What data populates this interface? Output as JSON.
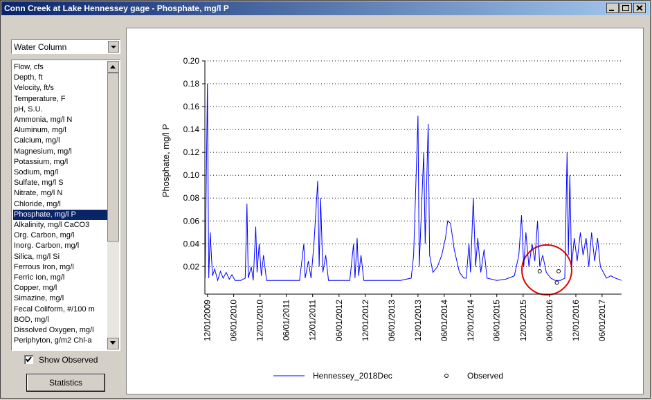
{
  "window": {
    "title": "Conn Creek at Lake Hennessey gage - Phosphate, mg/l P"
  },
  "sidebar": {
    "dropdown": "Water Column",
    "list_items": [
      "Flow, cfs",
      "Depth, ft",
      "Velocity, ft/s",
      "Temperature, F",
      "pH, S.U.",
      "Ammonia, mg/l N",
      "Aluminum, mg/l",
      "Calcium, mg/l",
      "Magnesium, mg/l",
      "Potassium, mg/l",
      "Sodium, mg/l",
      "Sulfate, mg/l S",
      "Nitrate, mg/l N",
      "Chloride, mg/l",
      "Phosphate, mg/l P",
      "Alkalinity, mg/l CaCO3",
      "Org. Carbon, mg/l",
      "Inorg. Carbon, mg/l",
      "Silica, mg/l Si",
      "Ferrous Iron, mg/l",
      "Ferric Ion, mg/l",
      "Copper, mg/l",
      "Simazine, mg/l",
      "Fecal Coliform, #/100 m",
      "BOD, mg/l",
      "Dissolved Oxygen, mg/l",
      "Periphyton, g/m2 Chl-a"
    ],
    "selected_index": 14,
    "checkbox": {
      "label": "Show Observed",
      "checked": true
    },
    "button": "Statistics"
  },
  "chart_data": {
    "type": "line",
    "ylabel": "Phosphate, mg/l P",
    "ylim": [
      -0.004,
      0.2
    ],
    "yticks": [
      0.02,
      0.04,
      0.06,
      0.08,
      {
        "value": 0.1,
        "label": "0.10"
      },
      0.12,
      0.14,
      0.16,
      0.18,
      {
        "value": 0.2,
        "label": "0.20"
      }
    ],
    "xlim": [
      "11/13/2009",
      "10/14/2017"
    ],
    "xticks": [
      "12/01/2009",
      "06/01/2010",
      "12/01/2010",
      "06/01/2011",
      "12/01/2011",
      "06/01/2012",
      "12/01/2012",
      "06/01/2013",
      "12/01/2013",
      "06/01/2014",
      "12/01/2014",
      "06/01/2015",
      "12/01/2015",
      "06/01/2016",
      "12/01/2016",
      "06/01/2017"
    ],
    "grid": true,
    "series": [
      {
        "name": "Hennessey_2018Dec",
        "color": "#0000ff",
        "style": "line",
        "x": [
          "11/15/2009",
          "12/01/2009",
          "12/10/2009",
          "12/20/2009",
          "01/05/2010",
          "01/20/2010",
          "02/10/2010",
          "03/01/2010",
          "03/20/2010",
          "04/10/2010",
          "05/01/2010",
          "05/20/2010",
          "06/10/2010",
          "07/20/2010",
          "08/20/2010",
          "09/01/2010",
          "09/10/2010",
          "10/01/2010",
          "10/15/2010",
          "11/01/2010",
          "11/10/2010",
          "11/25/2010",
          "12/10/2010",
          "12/25/2010",
          "01/15/2011",
          "04/01/2011",
          "06/15/2011",
          "09/01/2011",
          "10/01/2011",
          "10/10/2011",
          "11/01/2011",
          "11/20/2011",
          "12/10/2011",
          "01/05/2012",
          "01/15/2012",
          "01/25/2012",
          "02/10/2012",
          "03/01/2012",
          "03/20/2012",
          "06/01/2012",
          "08/15/2012",
          "09/10/2012",
          "09/20/2012",
          "10/05/2012",
          "10/15/2012",
          "11/01/2012",
          "11/20/2012",
          "04/01/2013",
          "08/01/2013",
          "10/15/2013",
          "11/01/2013",
          "12/01/2013",
          "12/10/2013",
          "01/10/2014",
          "01/20/2014",
          "02/10/2014",
          "02/20/2014",
          "03/15/2014",
          "04/15/2014",
          "05/15/2014",
          "06/10/2014",
          "06/25/2014",
          "07/15/2014",
          "08/10/2014",
          "09/15/2014",
          "10/15/2014",
          "11/01/2014",
          "11/20/2014",
          "12/01/2014",
          "12/20/2014",
          "01/05/2015",
          "01/20/2015",
          "02/10/2015",
          "03/05/2015",
          "03/25/2015",
          "06/01/2015",
          "08/01/2015",
          "10/01/2015",
          "11/01/2015",
          "11/20/2015",
          "12/05/2015",
          "12/20/2015",
          "01/10/2016",
          "02/01/2016",
          "02/20/2016",
          "03/10/2016",
          "03/25/2016",
          "04/15/2016",
          "05/10/2016",
          "06/10/2016",
          "07/10/2016",
          "08/15/2016",
          "09/15/2016",
          "10/01/2016",
          "10/10/2016",
          "10/20/2016",
          "11/01/2016",
          "11/20/2016",
          "12/10/2016",
          "01/01/2017",
          "01/20/2017",
          "02/10/2017",
          "03/01/2017",
          "03/20/2017",
          "04/10/2017",
          "05/01/2017",
          "05/20/2017",
          "06/10/2017",
          "07/01/2017",
          "08/01/2017",
          "09/01/2017",
          "10/14/2017"
        ],
        "values": [
          0.01,
          0.18,
          0.01,
          0.05,
          0.012,
          0.018,
          0.008,
          0.016,
          0.01,
          0.015,
          0.009,
          0.013,
          0.008,
          0.008,
          0.01,
          0.075,
          0.01,
          0.02,
          0.008,
          0.055,
          0.015,
          0.04,
          0.012,
          0.03,
          0.008,
          0.008,
          0.008,
          0.008,
          0.04,
          0.01,
          0.025,
          0.01,
          0.04,
          0.095,
          0.02,
          0.08,
          0.015,
          0.03,
          0.008,
          0.008,
          0.008,
          0.04,
          0.01,
          0.045,
          0.012,
          0.03,
          0.008,
          0.008,
          0.008,
          0.01,
          0.03,
          0.152,
          0.02,
          0.12,
          0.04,
          0.145,
          0.03,
          0.015,
          0.02,
          0.03,
          0.045,
          0.06,
          0.058,
          0.035,
          0.015,
          0.01,
          0.01,
          0.04,
          0.015,
          0.08,
          0.02,
          0.045,
          0.015,
          0.035,
          0.01,
          0.008,
          0.009,
          0.012,
          0.03,
          0.065,
          0.02,
          0.05,
          0.02,
          0.04,
          0.025,
          0.06,
          0.02,
          0.03,
          0.015,
          0.01,
          0.008,
          0.008,
          0.01,
          0.12,
          0.03,
          0.1,
          0.02,
          0.045,
          0.025,
          0.05,
          0.03,
          0.045,
          0.02,
          0.05,
          0.025,
          0.045,
          0.02,
          0.015,
          0.01,
          0.012,
          0.01,
          0.008
        ]
      },
      {
        "name": "Observed",
        "color": "#000000",
        "style": "markers",
        "x": [
          "03/25/2016",
          "07/22/2016",
          "08/03/2016"
        ],
        "values": [
          0.016,
          0.006,
          0.016
        ]
      }
    ]
  }
}
